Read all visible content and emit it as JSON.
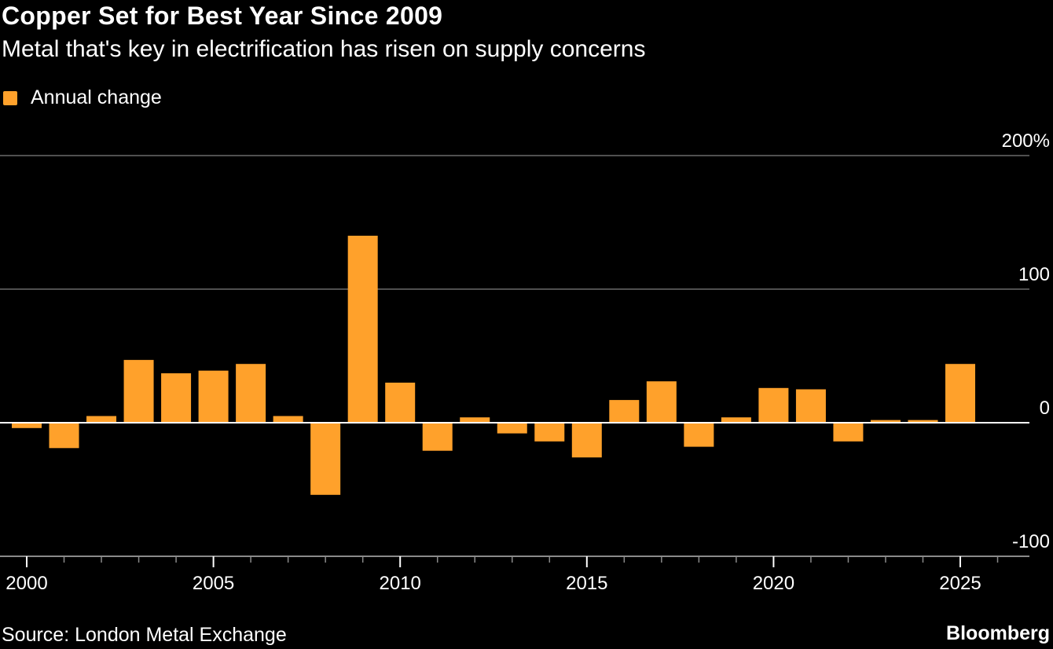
{
  "title": "Copper Set for Best Year Since 2009",
  "subtitle": "Metal that's key in electrification has risen on supply concerns",
  "source": "Source: London Metal Exchange",
  "brand": "Bloomberg",
  "chart_data": {
    "type": "bar",
    "title": "Copper Set for Best Year Since 2009",
    "subtitle": "Metal that's key in electrification has risen on supply concerns",
    "legend": {
      "position": "top-left",
      "entries": [
        "Annual change"
      ]
    },
    "bar_color": "#ffa12b",
    "x": [
      2000,
      2001,
      2002,
      2003,
      2004,
      2005,
      2006,
      2007,
      2008,
      2009,
      2010,
      2011,
      2012,
      2013,
      2014,
      2015,
      2016,
      2017,
      2018,
      2019,
      2020,
      2021,
      2022,
      2023,
      2024,
      2025
    ],
    "series": [
      {
        "name": "Annual change",
        "values": [
          -4,
          -19,
          5,
          47,
          37,
          39,
          44,
          5,
          -54,
          140,
          30,
          -21,
          4,
          -8,
          -14,
          -26,
          17,
          31,
          -18,
          4,
          26,
          25,
          -14,
          2,
          2,
          44
        ]
      }
    ],
    "ylim": [
      -100,
      200
    ],
    "yticks": [
      {
        "value": 200,
        "label": "200%"
      },
      {
        "value": 100,
        "label": "100"
      },
      {
        "value": 0,
        "label": "0"
      },
      {
        "value": -100,
        "label": "-100"
      }
    ],
    "xticks": [
      {
        "value": 2000,
        "label": "2000"
      },
      {
        "value": 2005,
        "label": "2005"
      },
      {
        "value": 2010,
        "label": "2010"
      },
      {
        "value": 2015,
        "label": "2015"
      },
      {
        "value": 2020,
        "label": "2020"
      },
      {
        "value": 2025,
        "label": "2025"
      }
    ],
    "xlim": [
      2000,
      2026
    ],
    "grid": true,
    "y_axis_side": "right"
  }
}
